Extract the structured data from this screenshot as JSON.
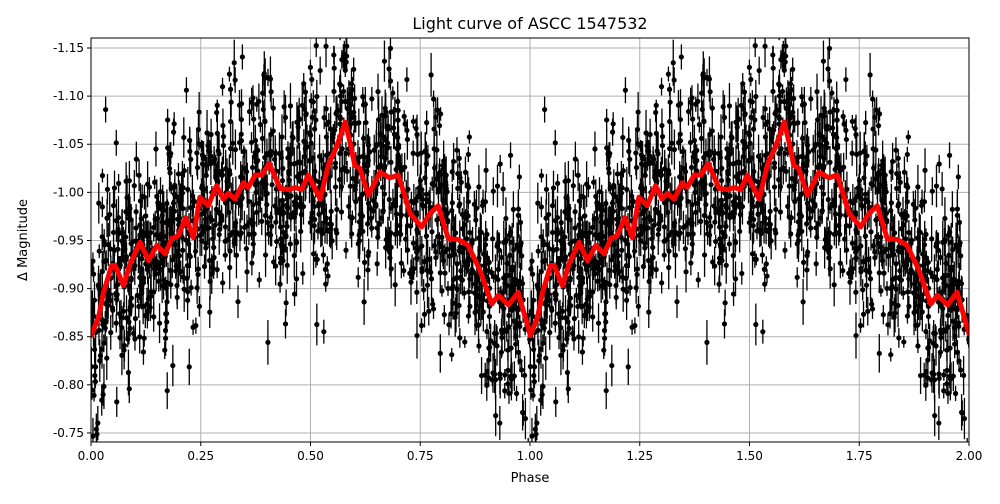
{
  "chart_data": {
    "type": "scatter",
    "title": "Light curve of ASCC 1547532",
    "xlabel": "Phase",
    "ylabel": "Δ Magnitude",
    "xlim": [
      0,
      2
    ],
    "ylim": [
      -0.7406,
      -1.1604
    ],
    "y_inverted": true,
    "grid": true,
    "x_ticks": [
      "0.00",
      "0.25",
      "0.50",
      "0.75",
      "1.00",
      "1.25",
      "1.50",
      "1.75",
      "2.00"
    ],
    "y_ticks": [
      "-1.15",
      "-1.10",
      "-1.05",
      "-1.00",
      "-0.95",
      "-0.90",
      "-0.85",
      "-0.80",
      "-0.75"
    ],
    "colors": {
      "points": "#000000",
      "model": "#ff0000",
      "grid": "#b0b0b0"
    },
    "series": [
      {
        "type": "errorbar-scatter",
        "marker": "circle",
        "color": "#000000"
      },
      {
        "type": "line",
        "color": "#ff0000",
        "phase": [
          0.0,
          0.017,
          0.028,
          0.047,
          0.055,
          0.074,
          0.089,
          0.112,
          0.131,
          0.15,
          0.169,
          0.184,
          0.199,
          0.216,
          0.233,
          0.248,
          0.267,
          0.286,
          0.301,
          0.313,
          0.328,
          0.347,
          0.358,
          0.374,
          0.389,
          0.406,
          0.431,
          0.45,
          0.465,
          0.48,
          0.495,
          0.522,
          0.541,
          0.56,
          0.579,
          0.59,
          0.601,
          0.612,
          0.632,
          0.658,
          0.681,
          0.7,
          0.727,
          0.753,
          0.772,
          0.791,
          0.814,
          0.837,
          0.859,
          0.886,
          0.913,
          0.928,
          0.951,
          0.973,
          1.0
        ],
        "magnitude": [
          -0.851,
          -0.87,
          -0.895,
          -0.924,
          -0.924,
          -0.903,
          -0.926,
          -0.948,
          -0.929,
          -0.945,
          -0.936,
          -0.952,
          -0.955,
          -0.974,
          -0.953,
          -0.995,
          -0.986,
          -1.007,
          -0.993,
          -0.999,
          -0.993,
          -1.01,
          -1.005,
          -1.018,
          -1.018,
          -1.03,
          -1.004,
          -1.003,
          -1.005,
          -1.003,
          -1.018,
          -0.993,
          -1.029,
          -1.048,
          -1.073,
          -1.052,
          -1.028,
          -1.025,
          -0.997,
          -1.021,
          -1.015,
          -1.018,
          -0.978,
          -0.964,
          -0.978,
          -0.986,
          -0.952,
          -0.951,
          -0.945,
          -0.919,
          -0.884,
          -0.893,
          -0.883,
          -0.896,
          -0.853
        ],
        "repeats_every_phase": 1
      }
    ]
  }
}
